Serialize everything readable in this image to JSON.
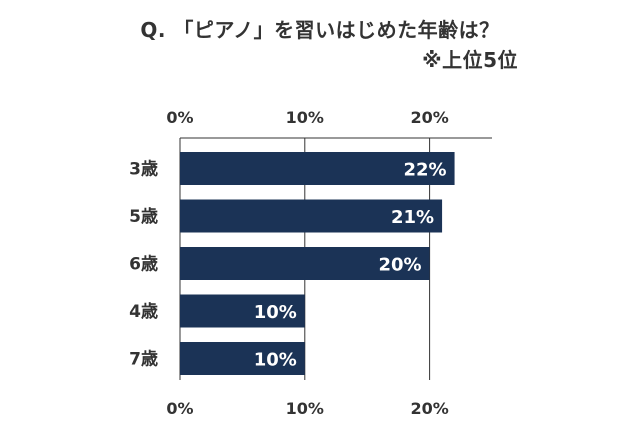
{
  "chart_data": {
    "type": "bar",
    "orientation": "horizontal",
    "title": "Q. 「ピアノ」を習いはじめた年齢は？",
    "subtitle": "※上位5位",
    "categories": [
      "3歳",
      "5歳",
      "6歳",
      "4歳",
      "7歳"
    ],
    "values": [
      22,
      21,
      20,
      10,
      10
    ],
    "value_labels": [
      "22%",
      "21%",
      "20%",
      "10%",
      "10%"
    ],
    "xlim": [
      0,
      25
    ],
    "x_ticks": [
      0,
      10,
      20
    ],
    "x_tick_labels": [
      "0%",
      "10%",
      "20%"
    ],
    "tick_labels_position": "top-and-bottom",
    "grid": "vertical",
    "legend": "none",
    "bar_color": "#1b3356",
    "value_label_color": "#ffffff"
  }
}
